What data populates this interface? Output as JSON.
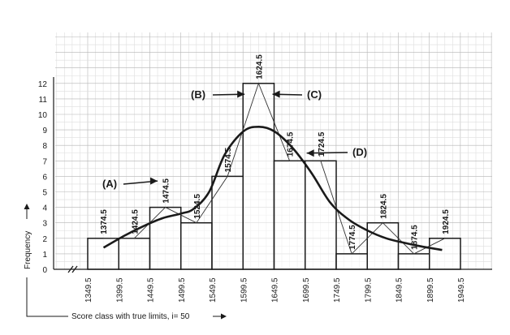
{
  "chart_data": {
    "type": "bar",
    "subtype": "histogram with frequency polygon and smoothed curve",
    "title": "",
    "xlabel": "Score class with true limits, i= 50",
    "ylabel": "Frequency",
    "class_width": 50,
    "class_boundaries": [
      "1349.5",
      "1399.5",
      "1449.5",
      "1499.5",
      "1549.5",
      "1599.5",
      "1649.5",
      "1699.5",
      "1749.5",
      "1799.5",
      "1849.5",
      "1899.5",
      "1949.5"
    ],
    "midpoints": [
      "1374.5",
      "1424.5",
      "1474.5",
      "1524.5",
      "1574.5",
      "1624.5",
      "1674.5",
      "1724.5",
      "1774.5",
      "1824.5",
      "1874.5",
      "1924.5"
    ],
    "values": [
      2,
      2,
      4,
      3,
      6,
      12,
      7,
      7,
      1,
      3,
      1,
      2
    ],
    "curve": {
      "x": [
        1375,
        1410,
        1440,
        1470,
        1500,
        1520,
        1545,
        1570,
        1600,
        1625,
        1650,
        1680,
        1710,
        1740,
        1770,
        1800,
        1830,
        1860,
        1890,
        1920
      ],
      "y": [
        1.4,
        2.2,
        2.8,
        3.3,
        3.6,
        3.9,
        5.0,
        7.4,
        8.9,
        9.2,
        8.9,
        7.8,
        6.2,
        4.3,
        3.2,
        2.5,
        2.0,
        1.7,
        1.45,
        1.25
      ]
    },
    "ylim": [
      0,
      12
    ],
    "yticks": [
      "0",
      "1",
      "2",
      "3",
      "4",
      "5",
      "6",
      "7",
      "8",
      "9",
      "10",
      "11",
      "12"
    ],
    "grid": true,
    "annotations": [
      {
        "label": "(A)",
        "target_x": 1462,
        "target_y": 5.7
      },
      {
        "label": "(B)",
        "target_x": 1602,
        "target_y": 11.3
      },
      {
        "label": "(C)",
        "target_x": 1647,
        "target_y": 11.3
      },
      {
        "label": "(D)",
        "target_x": 1702,
        "target_y": 7.5
      }
    ]
  }
}
